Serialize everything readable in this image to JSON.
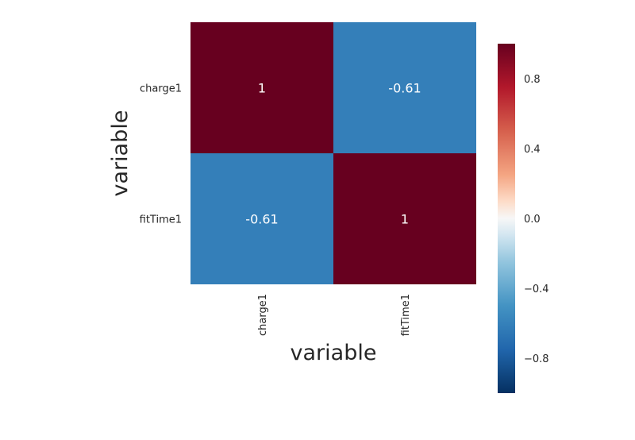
{
  "chart_data": {
    "type": "heatmap",
    "x_categories": [
      "charge1",
      "fitTime1"
    ],
    "y_categories": [
      "charge1",
      "fitTime1"
    ],
    "values": [
      [
        1,
        -0.61
      ],
      [
        -0.61,
        1
      ]
    ],
    "annotations": [
      [
        "1",
        "-0.61"
      ],
      [
        "-0.61",
        "1"
      ]
    ],
    "xlabel": "variable",
    "ylabel": "variable",
    "colorbar": {
      "min": -1,
      "max": 1,
      "ticks": [
        0.8,
        0.4,
        0.0,
        -0.4,
        -0.8
      ],
      "tick_labels": [
        "0.8",
        "0.4",
        "0.0",
        "−0.4",
        "−0.8"
      ],
      "colormap": "RdBu_r",
      "colorstops": [
        {
          "value": -1.0,
          "color": "#053061"
        },
        {
          "value": -0.75,
          "color": "#2166ac"
        },
        {
          "value": -0.5,
          "color": "#4393c3"
        },
        {
          "value": -0.25,
          "color": "#92c5de"
        },
        {
          "value": -0.1,
          "color": "#d1e5f0"
        },
        {
          "value": 0.0,
          "color": "#f7f7f7"
        },
        {
          "value": 0.1,
          "color": "#fddbc7"
        },
        {
          "value": 0.25,
          "color": "#f4a582"
        },
        {
          "value": 0.5,
          "color": "#d6604d"
        },
        {
          "value": 0.75,
          "color": "#b2182b"
        },
        {
          "value": 1.0,
          "color": "#67001f"
        }
      ]
    }
  }
}
